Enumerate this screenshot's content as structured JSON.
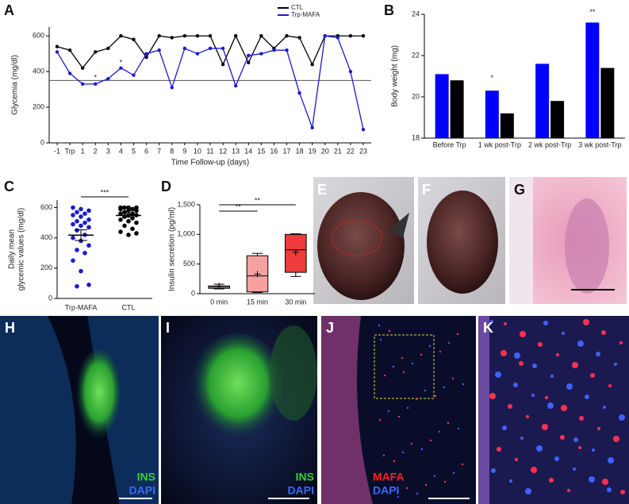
{
  "chart_data": [
    {
      "type": "line",
      "letter": "A",
      "ylabel": "Glycemia (mg/dl)",
      "xlabel": "Time Follow-up (days)",
      "categories": [
        "-1",
        "Trp",
        "1",
        "2",
        "3",
        "4",
        "5",
        "6",
        "7",
        "8",
        "9",
        "10",
        "11",
        "12",
        "13",
        "14",
        "15",
        "16",
        "17",
        "18",
        "19",
        "20",
        "21",
        "22",
        "23"
      ],
      "series": [
        {
          "name": "CTL",
          "color": "#000000",
          "values": [
            540,
            520,
            420,
            510,
            530,
            600,
            580,
            480,
            600,
            590,
            600,
            600,
            600,
            440,
            600,
            450,
            600,
            530,
            600,
            590,
            440,
            600,
            600,
            600,
            600
          ]
        },
        {
          "name": "Trp-MAFA",
          "color": "#1a1ad0",
          "values": [
            510,
            390,
            330,
            330,
            360,
            420,
            380,
            500,
            520,
            310,
            530,
            500,
            530,
            530,
            320,
            490,
            500,
            520,
            520,
            280,
            85,
            600,
            590,
            400,
            75
          ]
        }
      ],
      "ylim": [
        0,
        650
      ],
      "yticks": [
        0,
        200,
        400,
        600
      ],
      "hline": 350,
      "annotations": [
        {
          "text": "*",
          "x": "2",
          "y": 365
        },
        {
          "text": "*",
          "x": "4",
          "y": 450
        }
      ]
    },
    {
      "type": "bar",
      "letter": "B",
      "ylabel": "Body weight (mg)",
      "categories": [
        "Before Trp",
        "1 wk post-Trp",
        "2 wk post-Trp",
        "3 wk post-Trp"
      ],
      "series": [
        {
          "color": "#0000ff",
          "values": [
            21.1,
            20.3,
            21.6,
            23.6
          ]
        },
        {
          "color": "#000000",
          "values": [
            20.8,
            19.2,
            19.8,
            21.4
          ]
        }
      ],
      "ylim": [
        18,
        24
      ],
      "yticks": [
        18,
        20,
        22,
        24
      ],
      "annotations": [
        {
          "text": "*",
          "x": "1 wk post-Trp",
          "y": 20.9
        },
        {
          "text": "**",
          "x": "3 wk post-Trp",
          "y": 24.1
        }
      ]
    },
    {
      "type": "dotplot",
      "letter": "C",
      "ylabel": [
        "Daily mean",
        "glycemic values (mg/dl)"
      ],
      "categories": [
        "Trp-MAFA",
        "CTL"
      ],
      "colors": [
        "#1a1ad0",
        "#000000"
      ],
      "points": [
        [
          600,
          590,
          580,
          570,
          560,
          550,
          540,
          520,
          510,
          500,
          490,
          480,
          470,
          450,
          420,
          400,
          380,
          350,
          320,
          300,
          250,
          180,
          90,
          80
        ],
        [
          600,
          600,
          600,
          600,
          590,
          590,
          580,
          580,
          570,
          560,
          560,
          550,
          550,
          540,
          530,
          520,
          510,
          500,
          480,
          460,
          440,
          420,
          430
        ]
      ],
      "means": [
        418,
        548
      ],
      "sem": [
        35,
        12
      ],
      "ylim": [
        0,
        650
      ],
      "yticks": [
        0,
        200,
        400,
        600
      ],
      "significance": [
        {
          "text": "***",
          "between": [
            "Trp-MAFA",
            "CTL"
          ]
        }
      ]
    },
    {
      "type": "box",
      "letter": "D",
      "ylabel": "Insulin secretion (pg/ml)",
      "categories": [
        "0 min",
        "15 min",
        "30 min"
      ],
      "colors": [
        "#f2d4d4",
        "#f6a0a0",
        "#ee3b3b"
      ],
      "min": [
        80,
        20,
        290
      ],
      "q1": [
        90,
        30,
        360
      ],
      "median": [
        110,
        300,
        740
      ],
      "q3": [
        130,
        640,
        1000
      ],
      "max": [
        160,
        680,
        1010
      ],
      "mean": [
        130,
        330,
        700
      ],
      "ylim": [
        0,
        1500
      ],
      "yticks": [
        0,
        500,
        {
          "value": 1000,
          "label": "1,000"
        },
        {
          "value": 1500,
          "label": "1,500"
        }
      ],
      "significance": [
        {
          "text": "**",
          "between": [
            "0 min",
            "15 min"
          ]
        },
        {
          "text": "**",
          "between": [
            "0 min",
            "30 min"
          ]
        }
      ]
    }
  ],
  "images": [
    {
      "letter": "E"
    },
    {
      "letter": "F"
    },
    {
      "letter": "G"
    },
    {
      "letter": "H",
      "stains": [
        "INS",
        "DAPI"
      ]
    },
    {
      "letter": "I",
      "stains": [
        "INS",
        "DAPI"
      ]
    },
    {
      "letter": "J",
      "stains": [
        "MAFA",
        "DAPI"
      ]
    },
    {
      "letter": "K"
    }
  ]
}
